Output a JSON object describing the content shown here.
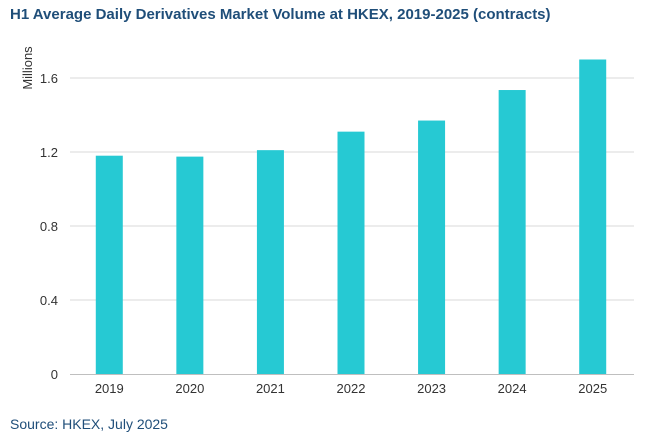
{
  "chart_data": {
    "type": "bar",
    "title": "H1 Average Daily Derivatives Market Volume at HKEX, 2019-2025 (contracts)",
    "xlabel": "",
    "ylabel": "Millions",
    "categories": [
      "2019",
      "2020",
      "2021",
      "2022",
      "2023",
      "2024",
      "2025"
    ],
    "values": [
      1.18,
      1.175,
      1.21,
      1.31,
      1.37,
      1.535,
      1.7
    ],
    "ylim": [
      0,
      1.8
    ],
    "yticks": [
      "0",
      "0.4",
      "0.8",
      "1.2",
      "1.6"
    ],
    "ytick_values": [
      0,
      0.4,
      0.8,
      1.2,
      1.6
    ],
    "grid": true,
    "legend": "none",
    "bar_color": "#26c9d3",
    "gridline_color": "#d9d9d9",
    "source": "Source: HKEX, July 2025"
  }
}
